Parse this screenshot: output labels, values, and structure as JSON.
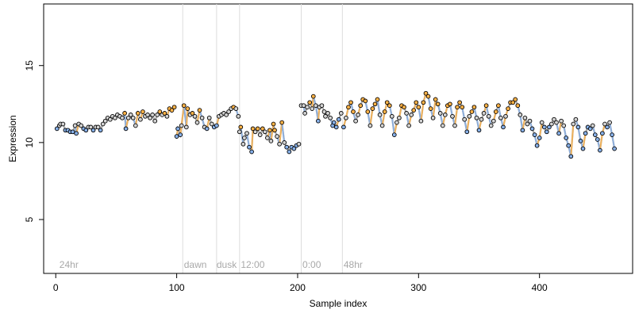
{
  "chart_data": {
    "type": "scatter",
    "title": "",
    "xlabel": "Sample index",
    "ylabel": "Expression",
    "xlim": [
      -10,
      477
    ],
    "ylim": [
      1.5,
      19
    ],
    "xticks": [
      0,
      100,
      200,
      300,
      400
    ],
    "yticks": [
      5,
      10,
      15
    ],
    "grid": false,
    "legend": "none",
    "colors": {
      "line": "#a9a9a9",
      "point_stroke": "#000000",
      "point_neutral": "#d3d3d3",
      "point_high": "#ffb347",
      "point_low": "#87b0e8",
      "vline": "#dcdcdc",
      "annotation": "#a8a8a8"
    },
    "vlines": [
      105,
      133,
      152,
      203,
      237
    ],
    "annotations": [
      {
        "label": "24hr",
        "x": 3
      },
      {
        "label": "dawn",
        "x": 106
      },
      {
        "label": "dusk",
        "x": 133
      },
      {
        "label": "12:00",
        "x": 153
      },
      {
        "label": "0:00",
        "x": 204
      },
      {
        "label": "48hr",
        "x": 238
      }
    ],
    "segments": [
      {
        "name": "24hr",
        "x_range": [
          1,
          104
        ],
        "points": [
          [
            1,
            10.9
          ],
          [
            3,
            11.1
          ],
          [
            4,
            11.2
          ],
          [
            6,
            11.2
          ],
          [
            8,
            10.8
          ],
          [
            10,
            10.8
          ],
          [
            12,
            10.7
          ],
          [
            14,
            10.7
          ],
          [
            16,
            11.1
          ],
          [
            17,
            10.6
          ],
          [
            19,
            11.2
          ],
          [
            21,
            11.1
          ],
          [
            23,
            10.9
          ],
          [
            25,
            10.8
          ],
          [
            27,
            11.0
          ],
          [
            29,
            11.0
          ],
          [
            31,
            10.8
          ],
          [
            33,
            11.0
          ],
          [
            35,
            11.0
          ],
          [
            37,
            10.8
          ],
          [
            39,
            11.2
          ],
          [
            41,
            11.4
          ],
          [
            43,
            11.6
          ],
          [
            45,
            11.5
          ],
          [
            47,
            11.7
          ],
          [
            49,
            11.6
          ],
          [
            51,
            11.8
          ],
          [
            53,
            11.7
          ],
          [
            55,
            11.6
          ],
          [
            57,
            11.9
          ],
          [
            58,
            10.9
          ],
          [
            60,
            11.6
          ],
          [
            62,
            11.8
          ],
          [
            64,
            11.6
          ],
          [
            66,
            11.1
          ],
          [
            68,
            11.9
          ],
          [
            70,
            11.5
          ],
          [
            72,
            12.0
          ],
          [
            74,
            11.7
          ],
          [
            76,
            11.8
          ],
          [
            78,
            11.6
          ],
          [
            80,
            11.8
          ],
          [
            82,
            11.4
          ],
          [
            84,
            11.8
          ],
          [
            86,
            12.0
          ],
          [
            88,
            11.8
          ],
          [
            90,
            11.9
          ],
          [
            92,
            11.7
          ],
          [
            94,
            12.2
          ],
          [
            96,
            12.1
          ],
          [
            98,
            12.3
          ]
        ]
      },
      {
        "name": "dawn",
        "x_range": [
          100,
          130
        ],
        "points": [
          [
            100,
            10.4
          ],
          [
            101,
            10.9
          ],
          [
            103,
            10.5
          ],
          [
            104,
            11.1
          ],
          [
            106,
            12.4
          ],
          [
            108,
            11.0
          ],
          [
            109,
            12.2
          ],
          [
            111,
            11.8
          ],
          [
            113,
            11.9
          ],
          [
            115,
            11.7
          ],
          [
            117,
            11.3
          ],
          [
            119,
            12.1
          ],
          [
            121,
            11.6
          ],
          [
            123,
            11.0
          ],
          [
            125,
            10.9
          ],
          [
            127,
            11.6
          ],
          [
            129,
            11.2
          ]
        ]
      },
      {
        "name": "dusk",
        "x_range": [
          131,
          150
        ],
        "points": [
          [
            131,
            11.0
          ],
          [
            133,
            11.1
          ],
          [
            135,
            11.7
          ],
          [
            137,
            11.8
          ],
          [
            139,
            11.9
          ],
          [
            141,
            11.8
          ],
          [
            143,
            12.0
          ],
          [
            145,
            12.2
          ],
          [
            147,
            12.3
          ],
          [
            149,
            12.2
          ],
          [
            151,
            11.7
          ]
        ]
      },
      {
        "name": "12:00",
        "x_range": [
          152,
          200
        ],
        "points": [
          [
            152,
            10.7
          ],
          [
            153,
            11.0
          ],
          [
            155,
            9.9
          ],
          [
            156,
            10.3
          ],
          [
            158,
            10.6
          ],
          [
            160,
            9.7
          ],
          [
            162,
            9.4
          ],
          [
            163,
            10.9
          ],
          [
            165,
            10.7
          ],
          [
            167,
            10.9
          ],
          [
            169,
            10.5
          ],
          [
            171,
            10.9
          ],
          [
            173,
            10.7
          ],
          [
            175,
            10.3
          ],
          [
            177,
            10.8
          ],
          [
            178,
            10.1
          ],
          [
            180,
            11.2
          ],
          [
            181,
            10.8
          ],
          [
            183,
            10.4
          ],
          [
            185,
            9.9
          ],
          [
            187,
            11.3
          ],
          [
            189,
            10.0
          ],
          [
            191,
            9.7
          ],
          [
            193,
            9.4
          ],
          [
            195,
            9.7
          ],
          [
            197,
            9.6
          ],
          [
            199,
            9.8
          ],
          [
            201,
            9.9
          ]
        ]
      },
      {
        "name": "0:00",
        "x_range": [
          203,
          236
        ],
        "points": [
          [
            203,
            12.4
          ],
          [
            205,
            12.4
          ],
          [
            206,
            11.9
          ],
          [
            208,
            12.3
          ],
          [
            210,
            12.6
          ],
          [
            212,
            12.2
          ],
          [
            213,
            13.0
          ],
          [
            215,
            12.4
          ],
          [
            217,
            11.4
          ],
          [
            218,
            12.3
          ],
          [
            220,
            12.4
          ],
          [
            222,
            12.0
          ],
          [
            223,
            11.7
          ],
          [
            225,
            11.9
          ],
          [
            227,
            11.6
          ],
          [
            229,
            11.1
          ],
          [
            230,
            11.3
          ],
          [
            232,
            11.0
          ],
          [
            234,
            11.5
          ],
          [
            236,
            11.9
          ]
        ]
      },
      {
        "name": "48hr",
        "x_range": [
          237,
          462
        ],
        "points": [
          [
            238,
            11.0
          ],
          [
            240,
            11.6
          ],
          [
            242,
            12.3
          ],
          [
            244,
            12.6
          ],
          [
            246,
            12.0
          ],
          [
            248,
            11.4
          ],
          [
            250,
            11.8
          ],
          [
            252,
            12.4
          ],
          [
            254,
            12.8
          ],
          [
            256,
            12.7
          ],
          [
            258,
            12.0
          ],
          [
            260,
            11.1
          ],
          [
            262,
            12.2
          ],
          [
            264,
            12.5
          ],
          [
            266,
            12.8
          ],
          [
            268,
            11.8
          ],
          [
            270,
            11.1
          ],
          [
            272,
            12.0
          ],
          [
            274,
            12.6
          ],
          [
            276,
            12.4
          ],
          [
            278,
            11.7
          ],
          [
            280,
            10.5
          ],
          [
            282,
            11.3
          ],
          [
            284,
            11.6
          ],
          [
            286,
            12.4
          ],
          [
            288,
            12.3
          ],
          [
            290,
            11.9
          ],
          [
            292,
            11.1
          ],
          [
            294,
            11.8
          ],
          [
            296,
            12.1
          ],
          [
            298,
            12.6
          ],
          [
            300,
            12.3
          ],
          [
            302,
            11.4
          ],
          [
            304,
            12.6
          ],
          [
            306,
            13.2
          ],
          [
            308,
            13.0
          ],
          [
            310,
            12.2
          ],
          [
            312,
            11.6
          ],
          [
            314,
            12.8
          ],
          [
            316,
            12.5
          ],
          [
            318,
            11.9
          ],
          [
            320,
            11.1
          ],
          [
            322,
            11.8
          ],
          [
            324,
            12.4
          ],
          [
            326,
            12.5
          ],
          [
            328,
            11.7
          ],
          [
            330,
            11.1
          ],
          [
            332,
            12.3
          ],
          [
            334,
            12.6
          ],
          [
            336,
            12.3
          ],
          [
            338,
            11.5
          ],
          [
            340,
            10.7
          ],
          [
            342,
            11.7
          ],
          [
            344,
            12.0
          ],
          [
            346,
            12.3
          ],
          [
            348,
            11.6
          ],
          [
            350,
            10.8
          ],
          [
            352,
            11.5
          ],
          [
            354,
            11.9
          ],
          [
            356,
            12.4
          ],
          [
            358,
            11.7
          ],
          [
            360,
            11.1
          ],
          [
            362,
            11.4
          ],
          [
            364,
            12.0
          ],
          [
            366,
            12.4
          ],
          [
            368,
            11.6
          ],
          [
            370,
            11.0
          ],
          [
            372,
            11.7
          ],
          [
            374,
            12.2
          ],
          [
            376,
            12.6
          ],
          [
            378,
            12.6
          ],
          [
            380,
            12.8
          ],
          [
            382,
            12.4
          ],
          [
            384,
            11.8
          ],
          [
            386,
            10.8
          ],
          [
            388,
            11.6
          ],
          [
            390,
            11.2
          ],
          [
            392,
            11.4
          ],
          [
            394,
            10.9
          ],
          [
            396,
            10.5
          ],
          [
            398,
            9.8
          ],
          [
            400,
            10.3
          ],
          [
            402,
            11.3
          ],
          [
            404,
            11.0
          ],
          [
            406,
            10.7
          ],
          [
            408,
            11.0
          ],
          [
            410,
            11.2
          ],
          [
            412,
            11.5
          ],
          [
            414,
            11.3
          ],
          [
            416,
            10.6
          ],
          [
            418,
            11.4
          ],
          [
            420,
            11.1
          ],
          [
            422,
            10.3
          ],
          [
            424,
            9.8
          ],
          [
            426,
            9.1
          ],
          [
            428,
            11.2
          ],
          [
            430,
            11.5
          ],
          [
            432,
            11.0
          ],
          [
            434,
            10.1
          ],
          [
            436,
            9.6
          ],
          [
            438,
            10.6
          ],
          [
            440,
            11.0
          ],
          [
            442,
            10.9
          ],
          [
            444,
            11.1
          ],
          [
            446,
            10.5
          ],
          [
            448,
            10.2
          ],
          [
            450,
            9.5
          ],
          [
            452,
            10.6
          ],
          [
            454,
            11.2
          ],
          [
            456,
            11.0
          ],
          [
            458,
            11.3
          ],
          [
            460,
            10.5
          ],
          [
            462,
            9.6
          ]
        ]
      }
    ]
  }
}
